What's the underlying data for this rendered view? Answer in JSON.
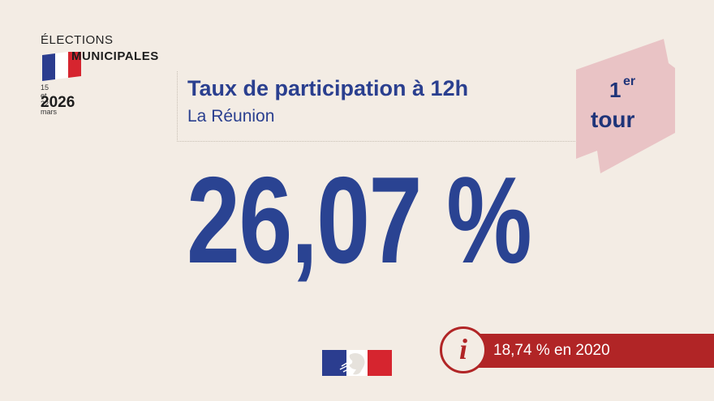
{
  "logo": {
    "line1": "ÉLECTIONS",
    "line2": "MUNICIPALES",
    "dates": "15 et 22 mars",
    "year": "2026"
  },
  "header": {
    "title": "Taux de participation à 12h",
    "region": "La Réunion"
  },
  "badge": {
    "number": "1",
    "superscript": "er",
    "word": "tour"
  },
  "main": {
    "value": "26,07 %"
  },
  "info": {
    "icon": "info-icon",
    "text": "18,74 % en 2020"
  },
  "colors": {
    "background": "#f3ece4",
    "primary_blue": "#2a4392",
    "accent_red": "#b12526",
    "badge_pink": "#e9c3c5"
  }
}
